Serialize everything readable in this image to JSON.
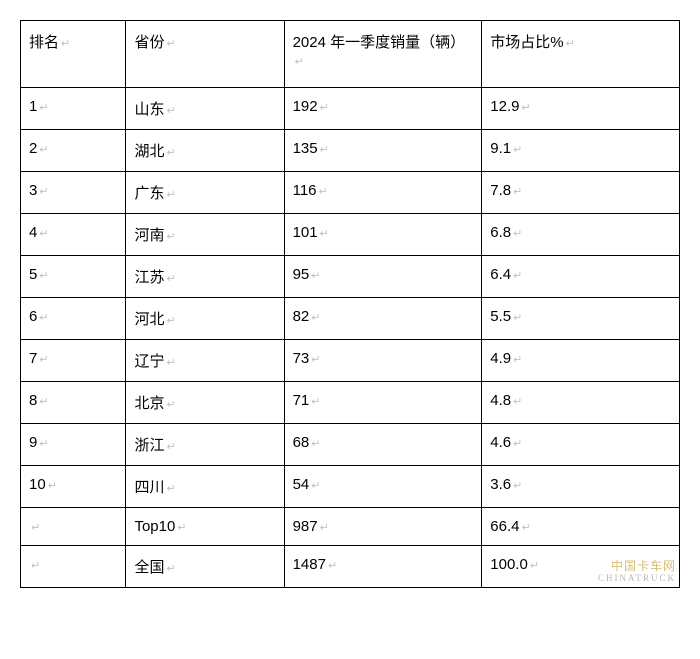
{
  "table": {
    "columns": [
      {
        "key": "rank",
        "label": "排名"
      },
      {
        "key": "prov",
        "label": "省份"
      },
      {
        "key": "sales",
        "label": "2024 年一季度销量（辆）"
      },
      {
        "key": "share",
        "label": "市场占比%"
      }
    ],
    "column_widths_pct": [
      16,
      24,
      30,
      30
    ],
    "rows": [
      {
        "rank": "1",
        "prov": "山东",
        "sales": "192",
        "share": "12.9"
      },
      {
        "rank": "2",
        "prov": "湖北",
        "sales": "135",
        "share": "9.1"
      },
      {
        "rank": "3",
        "prov": "广东",
        "sales": "116",
        "share": "7.8"
      },
      {
        "rank": "4",
        "prov": "河南",
        "sales": "101",
        "share": "6.8"
      },
      {
        "rank": "5",
        "prov": "江苏",
        "sales": "95",
        "share": "6.4"
      },
      {
        "rank": "6",
        "prov": "河北",
        "sales": "82",
        "share": "5.5"
      },
      {
        "rank": "7",
        "prov": "辽宁",
        "sales": "73",
        "share": "4.9"
      },
      {
        "rank": "8",
        "prov": "北京",
        "sales": "71",
        "share": "4.8"
      },
      {
        "rank": "9",
        "prov": "浙江",
        "sales": "68",
        "share": "4.6"
      },
      {
        "rank": "10",
        "prov": "四川",
        "sales": "54",
        "share": "3.6"
      },
      {
        "rank": "",
        "prov": "Top10",
        "sales": "987",
        "share": "66.4"
      },
      {
        "rank": "",
        "prov": "全国",
        "sales": "1487",
        "share": "100.0"
      }
    ],
    "border_color": "#000000",
    "background_color": "#ffffff",
    "font_size_pt": 11,
    "header_font_size_pt": 11,
    "text_color": "#000000",
    "enter_mark_color": "#c0c0c0"
  },
  "watermark": {
    "line1": "中国卡车网",
    "line2": "CHINATRUCK"
  }
}
